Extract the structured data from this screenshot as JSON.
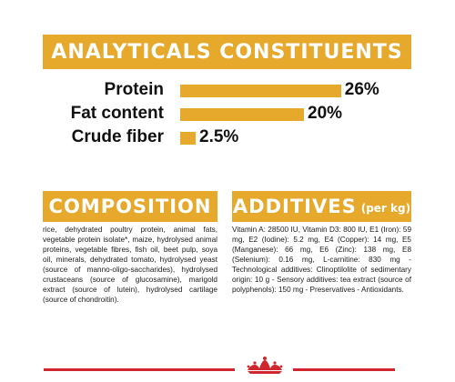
{
  "analytics": {
    "title": "ANALYTICALS CONSTITUENTS",
    "rows": [
      {
        "label": "Protein",
        "value_text": "26%",
        "value": 26
      },
      {
        "label": "Fat content",
        "value_text": "20%",
        "value": 20
      },
      {
        "label": "Crude fiber",
        "value_text": "2.5%",
        "value": 2.5
      }
    ],
    "bar_color": "#e6a92c"
  },
  "composition": {
    "title": "COMPOSITION",
    "text": "rice, dehydrated poultry protein, animal fats, vegetable protein isolate*, maize, hydrolysed animal proteins, vegetable fibres, fish oil, beet pulp, soya oil, minerals, dehydrated tomato, hydrolysed yeast (source of manno-oligo-saccharides), hydrolysed crustaceans (source of glucosamine), marigold extract (source of lutein), hydrolysed cartilage (source of chondroitin)."
  },
  "additives": {
    "title": "ADDITIVES",
    "title_suffix": "(per kg)",
    "text": "Vitamin A: 28500 IU, Vitamin D3: 800 IU, E1 (Iron): 59 mg, E2 (Iodine): 5.2 mg, E4 (Copper): 14 mg, E5 (Manganese): 66 mg, E6 (Zinc): 138 mg, E8 (Selenium): 0.16 mg, L-carnitine: 830 mg - Technological additives: Clinoptilolite of sedimentary origin: 10 g - Sensory additives: tea extract (source of polyphenols): 150 mg - Preservatives - Antioxidants."
  },
  "colors": {
    "accent": "#e6a92c",
    "brand_red": "#d0262d"
  },
  "footer": {
    "logo_icon": "crown-icon"
  }
}
